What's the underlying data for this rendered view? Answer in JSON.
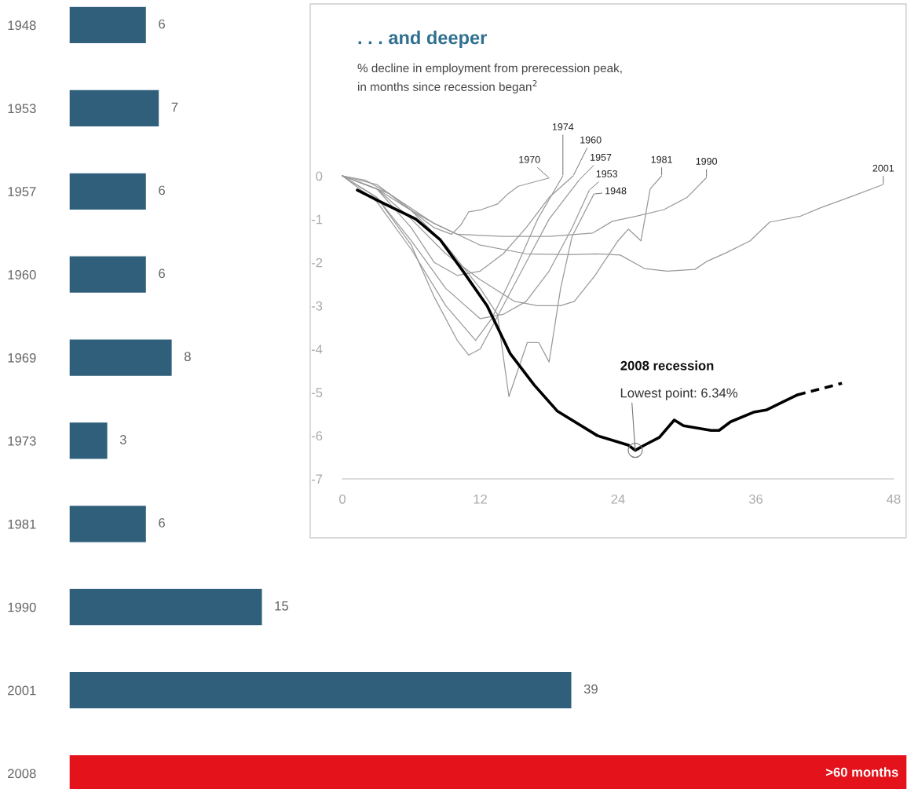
{
  "chart_data": [
    {
      "type": "bar",
      "orientation": "horizontal",
      "categories": [
        "1948",
        "1953",
        "1957",
        "1960",
        "1969",
        "1973",
        "1981",
        "1990",
        "2001",
        "2008"
      ],
      "values": [
        6,
        7,
        6,
        6,
        8,
        3,
        6,
        15,
        39,
        65
      ],
      "colors": [
        "#2f5f7a",
        "#2f5f7a",
        "#2f5f7a",
        "#2f5f7a",
        "#2f5f7a",
        "#2f5f7a",
        "#2f5f7a",
        "#2f5f7a",
        "#2f5f7a",
        "#e3121b"
      ],
      "value_labels": [
        "6",
        "7",
        "6",
        "6",
        "8",
        "3",
        "6",
        "15",
        "39",
        ">60 months"
      ],
      "xlim": [
        0,
        65
      ],
      "tick_labels": "y",
      "grid": false,
      "legend": false
    },
    {
      "type": "line",
      "title": ". . . and deeper",
      "subtitle": "% decline in employment from prerecession peak,\nin months since recession began$^{2}$",
      "xlim": [
        0,
        48
      ],
      "xticks": [
        0,
        12,
        24,
        36,
        48
      ],
      "ylim": [
        -7,
        0
      ],
      "yticks": [
        0,
        -1,
        -2,
        -3,
        -4,
        -5,
        -6,
        -7
      ],
      "grid": false,
      "legend": false,
      "line_style": "solid",
      "series": [
        {
          "name": "1948",
          "color": "#9a9a9a",
          "x": [
            0,
            3,
            6,
            9,
            12,
            13.5,
            14.5,
            16.1,
            17.1,
            18,
            19,
            20,
            21.9
          ],
          "values": [
            0,
            -0.2,
            -0.8,
            -1.6,
            -2.6,
            -3.2,
            -5.1,
            -3.85,
            -3.85,
            -4.3,
            -2.6,
            -1.4,
            -0.42
          ]
        },
        {
          "name": "1953",
          "color": "#9a9a9a",
          "x": [
            0,
            3,
            6,
            9,
            12,
            14,
            16,
            18,
            20,
            21.5
          ],
          "values": [
            0,
            -0.5,
            -1.5,
            -2.6,
            -3.3,
            -3.2,
            -2.9,
            -2.2,
            -1.2,
            -0.33
          ]
        },
        {
          "name": "1957",
          "color": "#9a9a9a",
          "x": [
            0,
            3,
            6,
            8,
            10,
            11,
            12,
            14,
            16,
            18,
            20.6
          ],
          "values": [
            0,
            -0.5,
            -1.6,
            -2.8,
            -3.8,
            -4.14,
            -4.0,
            -3.0,
            -2.0,
            -1.0,
            -0.1
          ]
        },
        {
          "name": "1960",
          "color": "#9a9a9a",
          "x": [
            0,
            3,
            6,
            8,
            10,
            12,
            14,
            16,
            18,
            20.1
          ],
          "values": [
            0,
            -0.3,
            -1.2,
            -2.0,
            -2.3,
            -2.2,
            -1.8,
            -1.2,
            -0.5,
            0
          ]
        },
        {
          "name": "1970",
          "color": "#9a9a9a",
          "x": [
            0,
            2,
            4,
            6,
            8,
            9.5,
            10.3,
            11,
            12.1,
            13.5,
            14.4,
            15.3,
            18
          ],
          "values": [
            0,
            -0.1,
            -0.4,
            -0.8,
            -1.2,
            -1.35,
            -1.14,
            -0.83,
            -0.78,
            -0.65,
            -0.42,
            -0.24,
            -0.05
          ]
        },
        {
          "name": "1974",
          "color": "#9a9a9a",
          "x": [
            0,
            3,
            6,
            9,
            11.6,
            13,
            15,
            17,
            19.2
          ],
          "values": [
            0,
            -0.6,
            -1.7,
            -3.0,
            -3.8,
            -3.3,
            -2.2,
            -1.0,
            0
          ]
        },
        {
          "name": "1981",
          "color": "#9a9a9a",
          "x": [
            0,
            3,
            6,
            9,
            12,
            15,
            17,
            19,
            20.2,
            22,
            24,
            24.9,
            26,
            26.8,
            27.8
          ],
          "values": [
            0,
            -0.3,
            -1.0,
            -1.8,
            -2.4,
            -2.9,
            -3.0,
            -3.0,
            -2.9,
            -2.3,
            -1.5,
            -1.23,
            -1.5,
            -0.3,
            0
          ]
        },
        {
          "name": "1990",
          "color": "#9a9a9a",
          "x": [
            0,
            3,
            6,
            8,
            10,
            14,
            18,
            21.8,
            23.5,
            25.6,
            28,
            30,
            31.7
          ],
          "values": [
            0,
            -0.3,
            -0.8,
            -1.1,
            -1.35,
            -1.4,
            -1.4,
            -1.32,
            -1.05,
            -0.93,
            -0.78,
            -0.5,
            -0.04
          ]
        },
        {
          "name": "2001",
          "color": "#9a9a9a",
          "x": [
            0,
            4,
            8,
            12,
            16,
            20,
            22,
            24.2,
            26.3,
            28.3,
            30.7,
            31.7,
            33.4,
            35.5,
            37.2,
            39.9,
            41.6,
            44.4,
            47.1
          ],
          "values": [
            0,
            -0.4,
            -1.1,
            -1.6,
            -1.8,
            -1.82,
            -1.8,
            -1.83,
            -2.14,
            -2.2,
            -2.16,
            -1.98,
            -1.78,
            -1.5,
            -1.07,
            -0.93,
            -0.74,
            -0.47,
            -0.2
          ]
        },
        {
          "color": "#000000",
          "x": [
            1.3,
            3.7,
            6.4,
            8.5,
            10.5,
            12.6,
            14.6,
            16.7,
            18.7,
            22.2,
            24.9,
            25.5,
            26.3,
            27.6,
            28.9,
            29.7,
            32.1,
            32.8,
            33.8,
            35.8,
            36.9,
            39.6
          ],
          "values": [
            -0.33,
            -0.65,
            -1.0,
            -1.47,
            -2.2,
            -3.0,
            -4.1,
            -4.83,
            -5.43,
            -6.0,
            -6.22,
            -6.34,
            -6.22,
            -6.04,
            -5.64,
            -5.77,
            -5.88,
            -5.88,
            -5.68,
            -5.46,
            -5.41,
            -5.06
          ]
        },
        {
          "color": "#000000",
          "line_style": "dashed",
          "x": [
            39.6,
            43.5
          ],
          "values": [
            -5.06,
            -4.79
          ]
        }
      ],
      "annotations": [
        "2008 recession",
        {
          "text": "Lowest point: 6.34%",
          "x": 25.5,
          "y": -6.34
        }
      ]
    }
  ]
}
